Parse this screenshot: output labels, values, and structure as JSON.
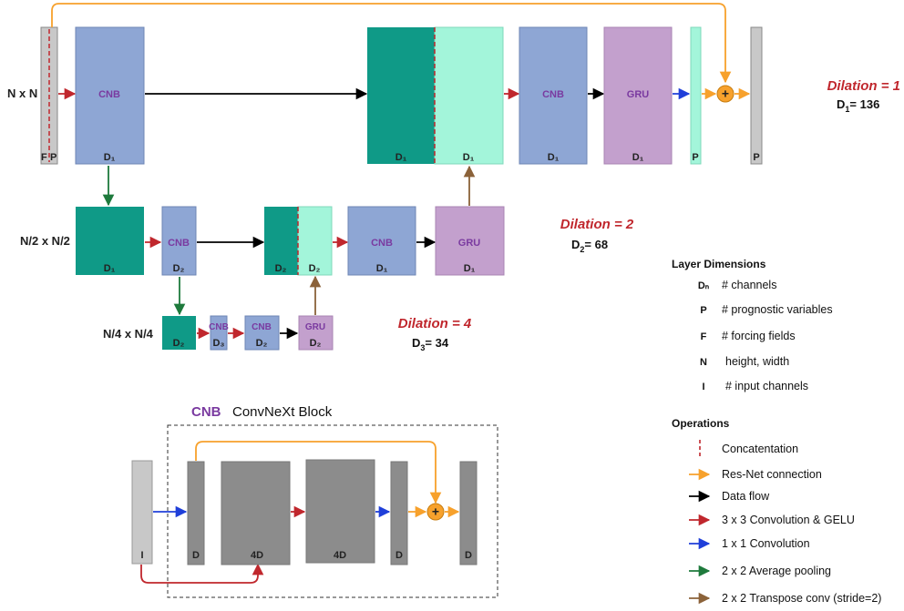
{
  "resolutions": {
    "full": "N x N",
    "half": "N/2 x N/2",
    "quarter": "N/4 x N/4"
  },
  "dilations": {
    "d1": {
      "title": "Dilation = 1",
      "sym": "D",
      "sub": "1",
      "value": "= 136"
    },
    "d2": {
      "title": "Dilation = 2",
      "sym": "D",
      "sub": "2",
      "value": "= 68"
    },
    "d4": {
      "title": "Dilation = 4",
      "sym": "D",
      "sub": "3",
      "value": "= 34"
    }
  },
  "blocks": {
    "cnb": "CNB",
    "gru": "GRU",
    "d1": "D₁",
    "d2": "D₂",
    "d3": "D₃",
    "f": "F",
    "p": "P"
  },
  "cnb_detail": {
    "abbr": "CNB",
    "title": "ConvNeXt Block",
    "labels": {
      "i": "I",
      "d_in": "D",
      "d4_a": "4D",
      "d4_b": "4D",
      "d_mid": "D",
      "d_out": "D"
    }
  },
  "legend": {
    "layer_title": "Layer Dimensions",
    "layers": [
      {
        "sym": "Dₙ",
        "text": "# channels"
      },
      {
        "sym": "P",
        "text": "# prognostic variables"
      },
      {
        "sym": "F",
        "text": "# forcing fields"
      },
      {
        "sym": "N",
        "text": "height, width"
      },
      {
        "sym": "I",
        "text": "# input channels"
      }
    ],
    "ops_title": "Operations",
    "ops": [
      {
        "name": "concatenation",
        "text": "Concatentation",
        "color": "#c0272d"
      },
      {
        "name": "resnet",
        "text": "Res-Net connection",
        "color": "#f7a12c"
      },
      {
        "name": "dataflow",
        "text": "Data flow",
        "color": "#000000"
      },
      {
        "name": "conv3",
        "text": "3 x 3 Convolution & GELU",
        "color": "#c0272d"
      },
      {
        "name": "conv1",
        "text": "1 x 1 Convolution",
        "color": "#1f3fd9"
      },
      {
        "name": "avgpool",
        "text": "2 x 2 Average pooling",
        "color": "#1e7a3c"
      },
      {
        "name": "transpose",
        "text": "2 x 2 Transpose conv (stride=2)",
        "color": "#8b6239"
      }
    ]
  },
  "colors": {
    "cnb": "#8ea6d4",
    "gru": "#c3a0cd",
    "teal": "#0f9a87",
    "mint": "#a3f5da",
    "grey": "#c8c8c8",
    "dark": "#8c8c8c",
    "orange": "#f7a12c",
    "red": "#c0272d",
    "blue": "#1f3fd9",
    "green": "#1e7a3c",
    "brown": "#8b6239",
    "purple": "#7a3aa0"
  }
}
